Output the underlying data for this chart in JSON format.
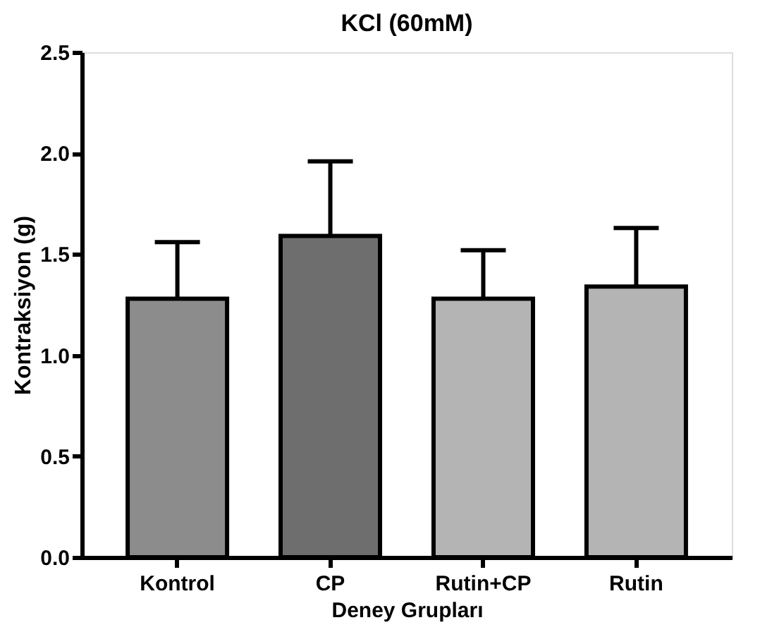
{
  "chart_data": {
    "type": "bar",
    "title": "KCl (60mM)",
    "xlabel": "Deney Grupları",
    "ylabel": "Kontraksiyon (g)",
    "categories": [
      "Kontrol",
      "CP",
      "Rutin+CP",
      "Rutin"
    ],
    "values": [
      1.28,
      1.59,
      1.28,
      1.34
    ],
    "colors": [
      "#8c8c8c",
      "#6e6e6e",
      "#b4b4b4",
      "#b4b4b4"
    ],
    "errors": [
      [
        1.28,
        1.56
      ],
      [
        1.59,
        1.96
      ],
      [
        1.28,
        1.52
      ],
      [
        1.34,
        1.63
      ]
    ],
    "ylim": [
      0,
      2.5
    ],
    "yticks": [
      {
        "value": 0,
        "label": "0.0"
      },
      {
        "value": 0.5,
        "label": "0.5"
      },
      {
        "value": 1,
        "label": "1.0"
      },
      {
        "value": 1.5,
        "label": "1.5"
      },
      {
        "value": 2,
        "label": "2.0"
      },
      {
        "value": 2.5,
        "label": "2.5"
      }
    ],
    "grid": false
  }
}
